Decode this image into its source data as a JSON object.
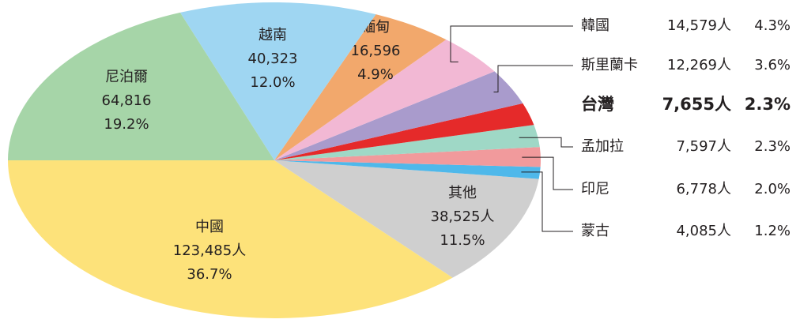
{
  "chart_data": {
    "type": "pie",
    "categories": [
      "中國",
      "其他",
      "蒙古",
      "印尼",
      "孟加拉",
      "台灣",
      "斯里蘭卡",
      "韓國",
      "緬甸",
      "越南",
      "尼泊爾"
    ],
    "values": [
      123485,
      38525,
      4085,
      6778,
      7597,
      7655,
      12269,
      14579,
      16596,
      40323,
      64816
    ],
    "value_labels": [
      "123,485人",
      "38,525人",
      "4,085人",
      "6,778人",
      "7,597人",
      "7,655人",
      "12,269人",
      "14,579人",
      "16,596",
      "40,323",
      "64,816"
    ],
    "percent_labels": [
      "36.7%",
      "11.5%",
      "1.2%",
      "2.0%",
      "2.3%",
      "2.3%",
      "3.6%",
      "4.3%",
      "4.9%",
      "12.0%",
      "19.2%"
    ],
    "colors": [
      "#fde27a",
      "#cfcfcf",
      "#4fb8ea",
      "#f19a9c",
      "#9fd8c6",
      "#e52a2a",
      "#a99bcc",
      "#f2b8d4",
      "#f2a86c",
      "#9fd6f2",
      "#a6d5a8"
    ]
  }
}
